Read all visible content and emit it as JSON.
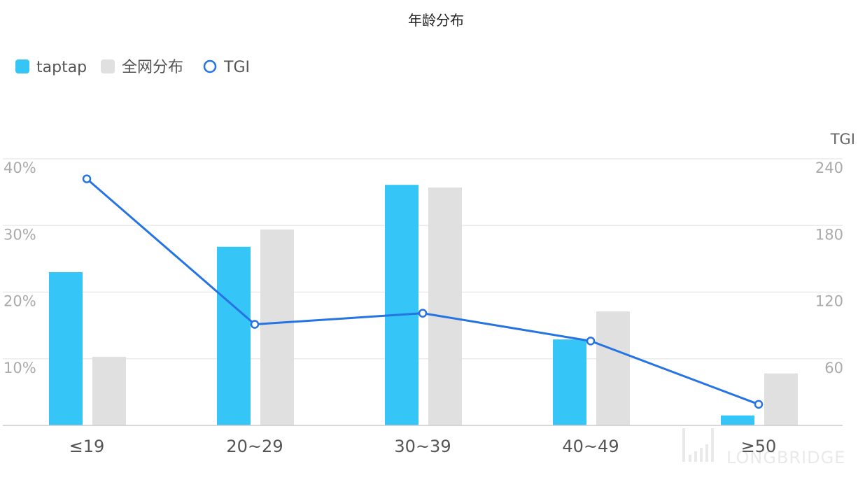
{
  "chart_data": {
    "type": "bar",
    "title": "年龄分布",
    "categories": [
      "≤19",
      "20~29",
      "30~39",
      "40~49",
      "≥50"
    ],
    "series": [
      {
        "name": "taptap",
        "type": "bar",
        "axis": "left",
        "color": "#36c5f7",
        "values": [
          23.0,
          26.8,
          36.1,
          12.9,
          1.5
        ]
      },
      {
        "name": "全网分布",
        "type": "bar",
        "axis": "left",
        "color": "#e0e0e0",
        "values": [
          10.3,
          29.4,
          35.7,
          17.1,
          7.8
        ]
      },
      {
        "name": "TGI",
        "type": "line",
        "axis": "right",
        "color": "#2673e4",
        "values": [
          222,
          91,
          101,
          76,
          19
        ]
      }
    ],
    "y_left": {
      "label": "",
      "range": [
        0,
        40
      ],
      "ticks": [
        "10%",
        "20%",
        "30%",
        "40%"
      ],
      "tick_values": [
        10,
        20,
        30,
        40
      ]
    },
    "y_right": {
      "label": "TGI",
      "range": [
        0,
        240
      ],
      "ticks": [
        "60",
        "120",
        "180",
        "240"
      ],
      "tick_values": [
        60,
        120,
        180,
        240
      ]
    },
    "grid": true,
    "legend_position": "top-left",
    "watermark": "LONGBRIDGE"
  }
}
